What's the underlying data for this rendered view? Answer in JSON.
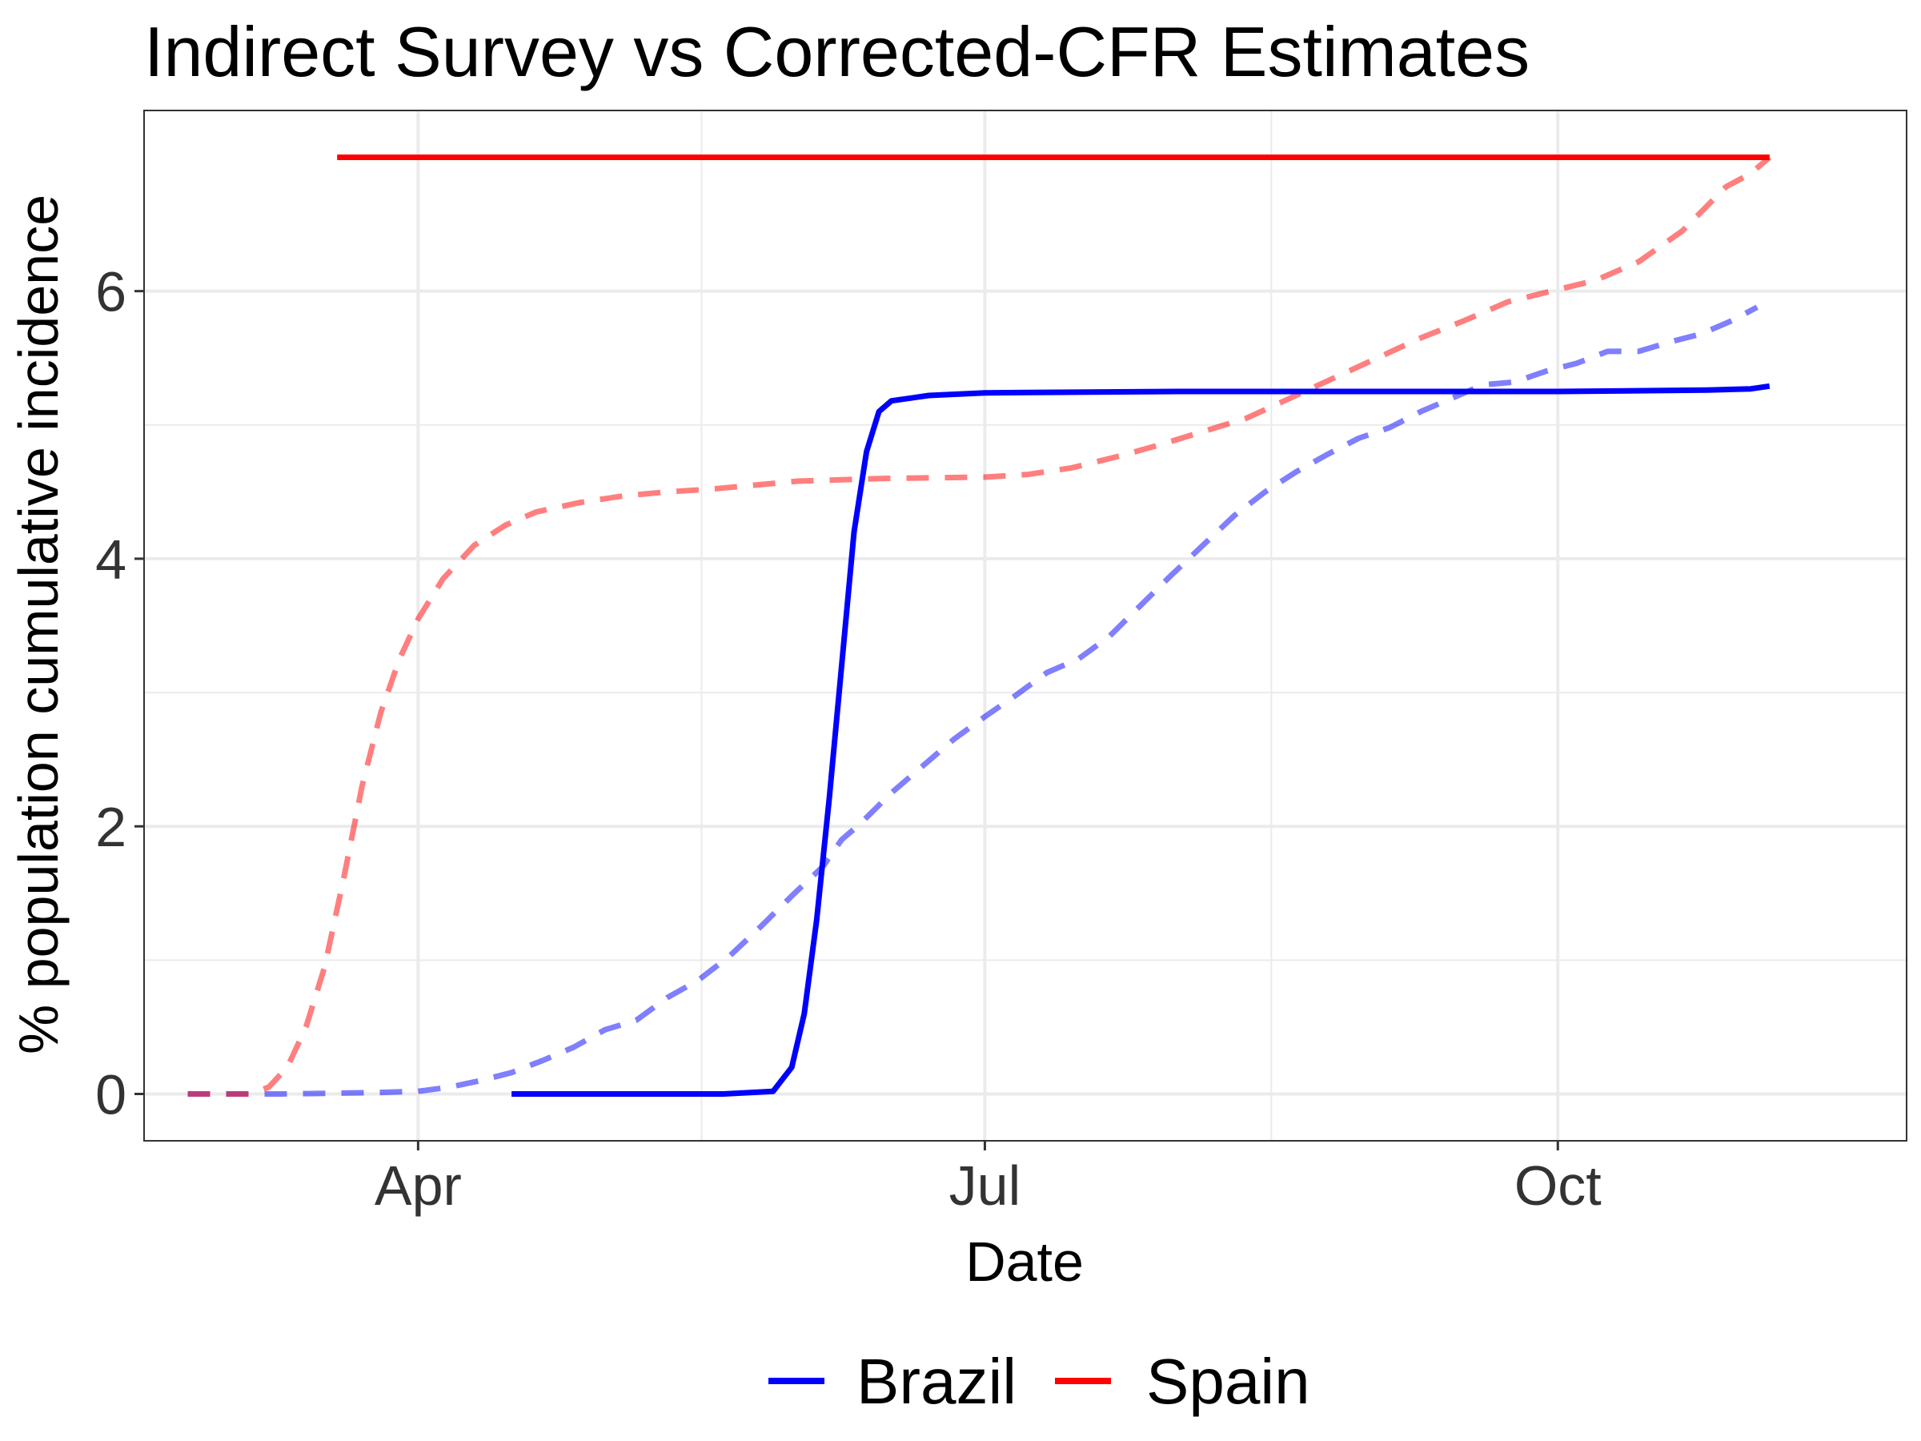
{
  "colors": {
    "Brazil": "#0000ff",
    "Spain": "#ff0000",
    "grid": "#ebebeb",
    "panel_border": "#333333"
  },
  "chart_data": {
    "type": "line",
    "title": "Indirect Survey vs Corrected-CFR Estimates",
    "xlabel": "Date",
    "ylabel": "% population cumulative incidence",
    "x_ticks": [
      {
        "label": "Apr",
        "date": "2020-04-01"
      },
      {
        "label": "Jul",
        "date": "2020-07-01"
      },
      {
        "label": "Oct",
        "date": "2020-10-01"
      }
    ],
    "xlim": [
      "2020-02-17",
      "2020-11-26"
    ],
    "y_ticks": [
      0,
      2,
      4,
      6
    ],
    "ylim": [
      -0.35,
      7.35
    ],
    "grid": true,
    "legend": {
      "position": "bottom",
      "entries": [
        "Brazil",
        "Spain"
      ]
    },
    "series": [
      {
        "name": "Brazil",
        "estimate": "Indirect Survey",
        "linetype": "solid",
        "color": "#0000ff",
        "points": [
          [
            "2020-04-16",
            0.0
          ],
          [
            "2020-05-01",
            0.0
          ],
          [
            "2020-05-20",
            0.0
          ],
          [
            "2020-05-28",
            0.02
          ],
          [
            "2020-05-31",
            0.2
          ],
          [
            "2020-06-02",
            0.6
          ],
          [
            "2020-06-04",
            1.3
          ],
          [
            "2020-06-06",
            2.2
          ],
          [
            "2020-06-08",
            3.2
          ],
          [
            "2020-06-10",
            4.2
          ],
          [
            "2020-06-12",
            4.8
          ],
          [
            "2020-06-14",
            5.1
          ],
          [
            "2020-06-16",
            5.18
          ],
          [
            "2020-06-22",
            5.22
          ],
          [
            "2020-07-01",
            5.24
          ],
          [
            "2020-08-01",
            5.25
          ],
          [
            "2020-09-01",
            5.25
          ],
          [
            "2020-10-01",
            5.25
          ],
          [
            "2020-10-25",
            5.26
          ],
          [
            "2020-11-01",
            5.27
          ],
          [
            "2020-11-04",
            5.29
          ]
        ]
      },
      {
        "name": "Spain",
        "estimate": "Indirect Survey",
        "linetype": "solid",
        "color": "#ff0000",
        "points": [
          [
            "2020-03-19",
            7.0
          ],
          [
            "2020-11-04",
            7.0
          ]
        ]
      },
      {
        "name": "Brazil",
        "estimate": "Corrected-CFR",
        "linetype": "dashed",
        "color": "#0000ff",
        "points": [
          [
            "2020-02-24",
            0.0
          ],
          [
            "2020-03-10",
            0.0
          ],
          [
            "2020-03-25",
            0.01
          ],
          [
            "2020-04-01",
            0.02
          ],
          [
            "2020-04-06",
            0.05
          ],
          [
            "2020-04-11",
            0.1
          ],
          [
            "2020-04-16",
            0.16
          ],
          [
            "2020-04-21",
            0.25
          ],
          [
            "2020-04-26",
            0.35
          ],
          [
            "2020-05-01",
            0.48
          ],
          [
            "2020-05-06",
            0.55
          ],
          [
            "2020-05-11",
            0.72
          ],
          [
            "2020-05-16",
            0.85
          ],
          [
            "2020-05-21",
            1.03
          ],
          [
            "2020-05-26",
            1.25
          ],
          [
            "2020-05-31",
            1.48
          ],
          [
            "2020-06-05",
            1.7
          ],
          [
            "2020-06-08",
            1.9
          ],
          [
            "2020-06-11",
            2.02
          ],
          [
            "2020-06-16",
            2.25
          ],
          [
            "2020-06-21",
            2.45
          ],
          [
            "2020-06-26",
            2.65
          ],
          [
            "2020-07-01",
            2.82
          ],
          [
            "2020-07-06",
            2.98
          ],
          [
            "2020-07-11",
            3.15
          ],
          [
            "2020-07-16",
            3.25
          ],
          [
            "2020-07-21",
            3.42
          ],
          [
            "2020-07-26",
            3.65
          ],
          [
            "2020-07-31",
            3.88
          ],
          [
            "2020-08-05",
            4.1
          ],
          [
            "2020-08-10",
            4.32
          ],
          [
            "2020-08-15",
            4.5
          ],
          [
            "2020-08-20",
            4.65
          ],
          [
            "2020-08-25",
            4.78
          ],
          [
            "2020-08-30",
            4.9
          ],
          [
            "2020-09-04",
            4.98
          ],
          [
            "2020-09-09",
            5.1
          ],
          [
            "2020-09-14",
            5.2
          ],
          [
            "2020-09-19",
            5.3
          ],
          [
            "2020-09-24",
            5.32
          ],
          [
            "2020-09-29",
            5.4
          ],
          [
            "2020-10-04",
            5.46
          ],
          [
            "2020-10-09",
            5.55
          ],
          [
            "2020-10-14",
            5.55
          ],
          [
            "2020-10-19",
            5.62
          ],
          [
            "2020-10-24",
            5.68
          ],
          [
            "2020-10-29",
            5.78
          ],
          [
            "2020-11-02",
            5.88
          ]
        ]
      },
      {
        "name": "Spain",
        "estimate": "Corrected-CFR",
        "linetype": "dashed",
        "color": "#ff0000",
        "points": [
          [
            "2020-02-24",
            0.0
          ],
          [
            "2020-03-05",
            0.0
          ],
          [
            "2020-03-08",
            0.05
          ],
          [
            "2020-03-11",
            0.2
          ],
          [
            "2020-03-14",
            0.5
          ],
          [
            "2020-03-17",
            0.95
          ],
          [
            "2020-03-20",
            1.6
          ],
          [
            "2020-03-23",
            2.3
          ],
          [
            "2020-03-26",
            2.85
          ],
          [
            "2020-03-29",
            3.25
          ],
          [
            "2020-04-01",
            3.55
          ],
          [
            "2020-04-05",
            3.85
          ],
          [
            "2020-04-10",
            4.1
          ],
          [
            "2020-04-15",
            4.25
          ],
          [
            "2020-04-20",
            4.35
          ],
          [
            "2020-04-27",
            4.42
          ],
          [
            "2020-05-04",
            4.47
          ],
          [
            "2020-05-11",
            4.5
          ],
          [
            "2020-05-18",
            4.52
          ],
          [
            "2020-05-25",
            4.55
          ],
          [
            "2020-06-01",
            4.58
          ],
          [
            "2020-06-15",
            4.6
          ],
          [
            "2020-07-01",
            4.61
          ],
          [
            "2020-07-08",
            4.63
          ],
          [
            "2020-07-15",
            4.68
          ],
          [
            "2020-07-22",
            4.76
          ],
          [
            "2020-07-29",
            4.85
          ],
          [
            "2020-08-05",
            4.95
          ],
          [
            "2020-08-12",
            5.05
          ],
          [
            "2020-08-19",
            5.2
          ],
          [
            "2020-08-26",
            5.35
          ],
          [
            "2020-09-02",
            5.5
          ],
          [
            "2020-09-09",
            5.65
          ],
          [
            "2020-09-16",
            5.78
          ],
          [
            "2020-09-23",
            5.92
          ],
          [
            "2020-09-30",
            6.0
          ],
          [
            "2020-10-07",
            6.08
          ],
          [
            "2020-10-14",
            6.22
          ],
          [
            "2020-10-21",
            6.45
          ],
          [
            "2020-10-28",
            6.78
          ],
          [
            "2020-11-01",
            6.88
          ],
          [
            "2020-11-04",
            7.0
          ]
        ]
      }
    ]
  }
}
